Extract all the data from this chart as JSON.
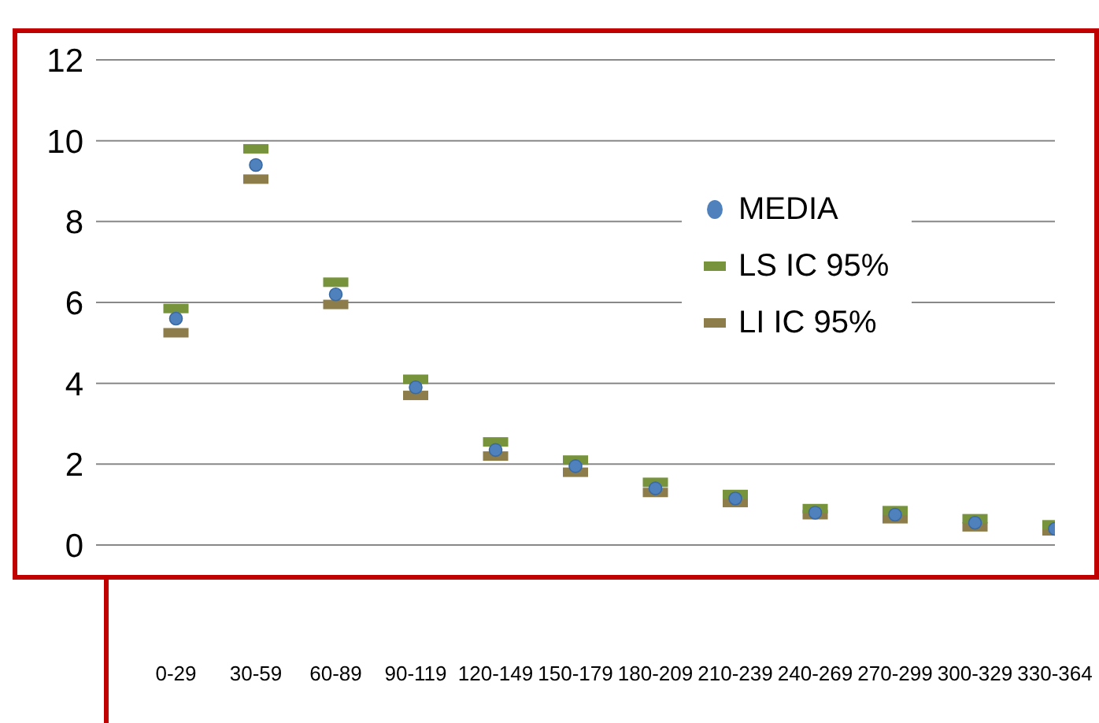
{
  "chart_data": {
    "type": "scatter",
    "categories": [
      "0-29",
      "30-59",
      "60-89",
      "90-119",
      "120-149",
      "150-179",
      "180-209",
      "210-239",
      "240-269",
      "270-299",
      "300-329",
      "330-364"
    ],
    "series": [
      {
        "name": "MEDIA",
        "color": "#4f81bd",
        "marker": "circle",
        "values": [
          5.6,
          9.4,
          6.2,
          3.9,
          2.35,
          1.95,
          1.4,
          1.15,
          0.8,
          0.75,
          0.55,
          0.4
        ]
      },
      {
        "name": "LS IC 95%",
        "color": "#77933c",
        "marker": "square",
        "values": [
          5.85,
          9.8,
          6.5,
          4.1,
          2.55,
          2.1,
          1.55,
          1.25,
          0.9,
          0.85,
          0.65,
          0.5
        ]
      },
      {
        "name": "LI IC 95%",
        "color": "#8c7d4a",
        "marker": "square",
        "values": [
          5.25,
          9.05,
          5.95,
          3.7,
          2.2,
          1.8,
          1.3,
          1.05,
          0.75,
          0.65,
          0.45,
          0.35
        ]
      }
    ],
    "ylim": [
      0,
      12
    ],
    "yticks": [
      0,
      2,
      4,
      6,
      8,
      10,
      12
    ],
    "grid": "y",
    "legend": "right"
  }
}
